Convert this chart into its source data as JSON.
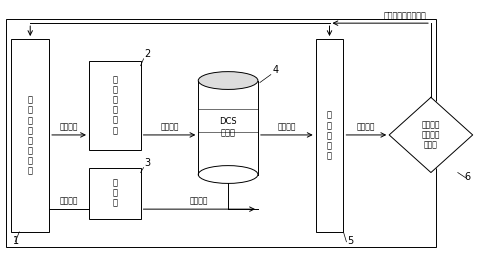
{
  "bg_color": "#ffffff",
  "border_color": "#000000",
  "title_top": "熔融指数离线化验值",
  "label1": "丙烯聚合生产过程",
  "label2": "现场\n智能\n仪表",
  "label3": "控制站",
  "label4": "DCS\n数据库",
  "label5": "软\n测\n量\n模\n型",
  "label6": "熔融指数\n软测量值\n显示仪",
  "arrow_easy_meas_1": "易测变量",
  "arrow_easy_meas_2": "易测变量",
  "arrow_model_input": "模型输入",
  "arrow_model_output": "模型输出",
  "arrow_op_var_1": "操作变量",
  "arrow_op_var_2": "操作变量",
  "num1": "1",
  "num2": "2",
  "num3": "3",
  "num4": "4",
  "num5": "5",
  "num6": "6"
}
